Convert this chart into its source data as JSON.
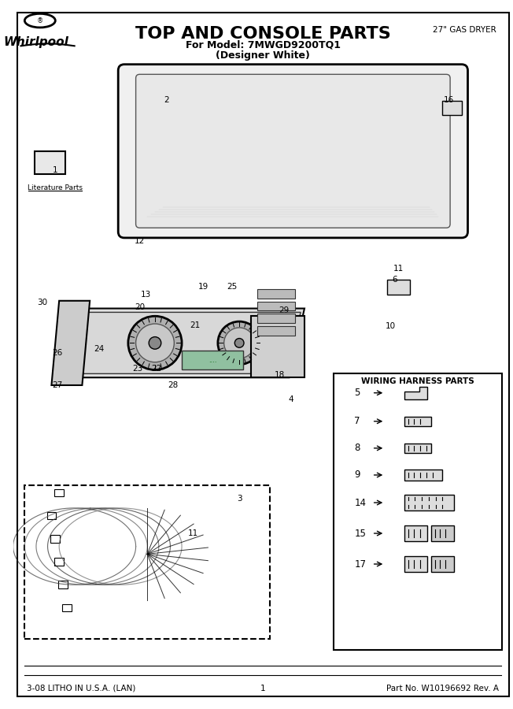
{
  "title": "TOP AND CONSOLE PARTS",
  "subtitle1": "For Model: 7MWGD9200TQ1",
  "subtitle2": "(Designer White)",
  "top_right_text": "27\" GAS DRYER",
  "bottom_left": "3-08 LITHO IN U.S.A. (LAN)",
  "bottom_center": "1",
  "bottom_right": "Part No. W10196692 Rev. A",
  "wiring_box_title": "WIRING HARNESS PARTS",
  "wiring_items": [
    "5",
    "7",
    "8",
    "9",
    "14",
    "15",
    "17"
  ],
  "bg_color": "#ffffff",
  "border_color": "#000000",
  "text_color": "#000000"
}
